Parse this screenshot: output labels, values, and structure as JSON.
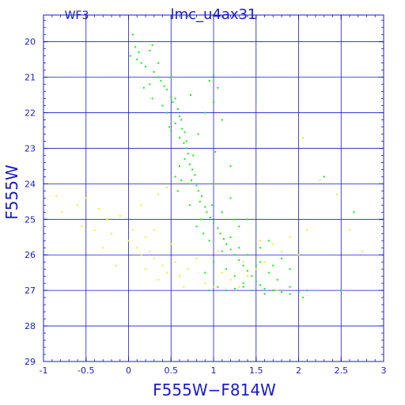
{
  "chart_data": {
    "type": "scatter",
    "title": "lmc_u4ax31",
    "subtitle": "WF3",
    "xlabel": "F555W−F814W",
    "ylabel": "F555W",
    "xlim": [
      -1,
      3
    ],
    "ylim": [
      29,
      19.25
    ],
    "y_inverted": true,
    "x_ticks": [
      -1,
      -0.5,
      0,
      0.5,
      1,
      1.5,
      2,
      2.5,
      3
    ],
    "x_tick_labels": [
      "-1",
      "-0.5",
      "0",
      "0.5",
      "1",
      "1.5",
      "2",
      "2.5",
      "3"
    ],
    "y_ticks": [
      20,
      21,
      22,
      23,
      24,
      25,
      26,
      27,
      28,
      29
    ],
    "y_tick_labels": [
      "20",
      "21",
      "22",
      "23",
      "24",
      "25",
      "26",
      "27",
      "28",
      "29"
    ],
    "grid": true,
    "colors": {
      "axis": "#1a1acc",
      "grid": "#1a1acc",
      "series_green": "#11ee11",
      "series_yellow": "#eeee22"
    },
    "series": [
      {
        "color": "#11ee11",
        "points": [
          [
            0.05,
            19.8
          ],
          [
            0.08,
            20.15
          ],
          [
            0.12,
            20.3
          ],
          [
            0.1,
            20.5
          ],
          [
            0.15,
            20.6
          ],
          [
            0.2,
            20.7
          ],
          [
            0.25,
            20.25
          ],
          [
            0.28,
            20.1
          ],
          [
            0.3,
            20.85
          ],
          [
            0.35,
            21.0
          ],
          [
            0.38,
            21.1
          ],
          [
            0.42,
            21.25
          ],
          [
            0.45,
            21.35
          ],
          [
            0.5,
            21.55
          ],
          [
            0.55,
            21.6
          ],
          [
            0.52,
            21.7
          ],
          [
            0.58,
            21.9
          ],
          [
            0.6,
            22.1
          ],
          [
            0.62,
            22.2
          ],
          [
            0.55,
            22.3
          ],
          [
            0.63,
            22.45
          ],
          [
            0.66,
            22.55
          ],
          [
            0.6,
            22.7
          ],
          [
            0.65,
            22.85
          ],
          [
            0.68,
            23.0
          ],
          [
            0.7,
            23.15
          ],
          [
            0.66,
            23.3
          ],
          [
            0.72,
            23.45
          ],
          [
            0.75,
            23.6
          ],
          [
            0.78,
            23.75
          ],
          [
            0.74,
            23.9
          ],
          [
            0.8,
            24.05
          ],
          [
            0.82,
            24.2
          ],
          [
            0.86,
            24.35
          ],
          [
            0.84,
            24.5
          ],
          [
            0.9,
            24.65
          ],
          [
            0.92,
            24.8
          ],
          [
            0.96,
            24.95
          ],
          [
            1.0,
            25.1
          ],
          [
            1.05,
            25.25
          ],
          [
            1.08,
            25.4
          ],
          [
            1.12,
            25.55
          ],
          [
            1.15,
            25.7
          ],
          [
            1.2,
            25.85
          ],
          [
            1.25,
            26.0
          ],
          [
            1.3,
            26.15
          ],
          [
            1.35,
            26.3
          ],
          [
            1.4,
            26.45
          ],
          [
            1.45,
            26.6
          ],
          [
            1.5,
            26.75
          ],
          [
            1.55,
            26.85
          ],
          [
            1.6,
            26.95
          ],
          [
            1.7,
            27.0
          ],
          [
            1.8,
            27.05
          ],
          [
            1.9,
            27.1
          ],
          [
            2.0,
            27.05
          ],
          [
            2.05,
            27.2
          ],
          [
            2.1,
            27.0
          ],
          [
            1.65,
            26.5
          ],
          [
            1.75,
            26.7
          ],
          [
            1.5,
            26.3
          ],
          [
            1.4,
            26.0
          ],
          [
            1.3,
            25.8
          ],
          [
            1.2,
            25.5
          ],
          [
            1.1,
            25.9
          ],
          [
            1.0,
            26.2
          ],
          [
            0.9,
            26.5
          ],
          [
            0.95,
            25.6
          ],
          [
            1.15,
            26.4
          ],
          [
            1.25,
            26.6
          ],
          [
            1.35,
            26.8
          ],
          [
            1.45,
            27.0
          ],
          [
            0.85,
            25.0
          ],
          [
            1.3,
            25.2
          ],
          [
            1.1,
            24.8
          ],
          [
            0.7,
            24.0
          ],
          [
            0.6,
            23.5
          ],
          [
            0.5,
            22.5
          ],
          [
            0.45,
            22.0
          ],
          [
            1.0,
            24.0
          ],
          [
            1.2,
            24.4
          ],
          [
            1.4,
            25.0
          ],
          [
            0.95,
            21.1
          ],
          [
            1.0,
            21.7
          ],
          [
            0.9,
            22.0
          ],
          [
            1.1,
            22.2
          ],
          [
            1.05,
            21.3
          ],
          [
            0.55,
            23.8
          ],
          [
            1.65,
            25.6
          ],
          [
            1.8,
            26.1
          ],
          [
            1.9,
            26.4
          ],
          [
            1.0,
            20.95
          ],
          [
            0.18,
            21.3
          ],
          [
            0.28,
            21.6
          ],
          [
            0.4,
            21.8
          ],
          [
            0.48,
            22.4
          ],
          [
            0.58,
            24.2
          ],
          [
            0.72,
            24.6
          ],
          [
            0.8,
            25.2
          ],
          [
            0.88,
            25.4
          ],
          [
            1.55,
            26.2
          ],
          [
            1.7,
            26.3
          ],
          [
            0.02,
            20.4
          ],
          [
            0.35,
            20.6
          ],
          [
            0.25,
            21.2
          ],
          [
            0.5,
            21.0
          ],
          [
            0.68,
            22.8
          ],
          [
            0.76,
            23.2
          ],
          [
            0.62,
            23.9
          ],
          [
            0.98,
            24.6
          ],
          [
            1.25,
            25.0
          ],
          [
            1.55,
            25.8
          ],
          [
            0.73,
            21.5
          ],
          [
            0.82,
            22.6
          ],
          [
            1.02,
            23.1
          ],
          [
            1.2,
            23.5
          ],
          [
            2.3,
            23.8
          ],
          [
            2.05,
            22.7
          ],
          [
            0.95,
            27.0
          ],
          [
            1.05,
            26.9
          ],
          [
            1.15,
            27.0
          ],
          [
            1.25,
            26.95
          ],
          [
            1.35,
            26.9
          ],
          [
            1.6,
            27.1
          ],
          [
            2.5,
            27.0
          ],
          [
            2.65,
            24.8
          ],
          [
            1.9,
            26.9
          ]
        ]
      },
      {
        "color": "#eeee22",
        "points": [
          [
            -0.95,
            24.0
          ],
          [
            -0.85,
            24.35
          ],
          [
            -0.78,
            24.8
          ],
          [
            -0.6,
            24.6
          ],
          [
            -0.55,
            25.2
          ],
          [
            -0.4,
            25.3
          ],
          [
            -0.35,
            24.7
          ],
          [
            -0.25,
            25.0
          ],
          [
            -0.2,
            25.4
          ],
          [
            -0.1,
            24.9
          ],
          [
            0.0,
            25.6
          ],
          [
            0.05,
            25.3
          ],
          [
            0.1,
            25.8
          ],
          [
            0.15,
            26.0
          ],
          [
            0.2,
            25.5
          ],
          [
            0.25,
            25.9
          ],
          [
            0.3,
            26.1
          ],
          [
            0.35,
            24.3
          ],
          [
            0.4,
            26.3
          ],
          [
            0.45,
            26.5
          ],
          [
            0.5,
            25.7
          ],
          [
            0.55,
            26.2
          ],
          [
            0.6,
            26.6
          ],
          [
            0.7,
            26.4
          ],
          [
            0.8,
            26.1
          ],
          [
            0.9,
            26.8
          ],
          [
            1.0,
            26.9
          ],
          [
            1.1,
            26.5
          ],
          [
            1.2,
            26.7
          ],
          [
            1.3,
            26.9
          ],
          [
            1.4,
            26.6
          ],
          [
            1.5,
            26.4
          ],
          [
            1.6,
            26.2
          ],
          [
            1.7,
            25.7
          ],
          [
            1.8,
            25.9
          ],
          [
            1.9,
            25.5
          ],
          [
            2.0,
            26.0
          ],
          [
            2.1,
            25.3
          ],
          [
            2.05,
            22.7
          ],
          [
            2.25,
            23.9
          ],
          [
            2.45,
            24.3
          ],
          [
            2.6,
            25.3
          ],
          [
            2.75,
            25.9
          ],
          [
            0.3,
            25.3
          ],
          [
            0.2,
            26.4
          ],
          [
            -0.3,
            25.8
          ],
          [
            -0.15,
            26.3
          ],
          [
            0.65,
            26.9
          ],
          [
            1.05,
            25.9
          ],
          [
            1.35,
            26.2
          ],
          [
            1.55,
            25.6
          ],
          [
            0.15,
            24.6
          ],
          [
            -0.5,
            24.4
          ],
          [
            0.45,
            24.1
          ],
          [
            1.75,
            27.0
          ],
          [
            0.35,
            26.7
          ]
        ]
      }
    ]
  }
}
